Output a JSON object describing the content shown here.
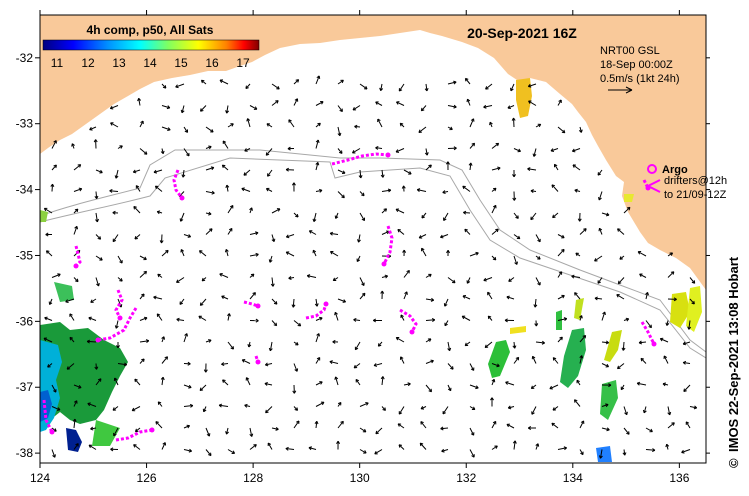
{
  "map": {
    "title": "20-Sep-2021 16Z",
    "colorbar": {
      "title": "4h comp, p50, All Sats",
      "tick_labels": [
        "11",
        "12",
        "13",
        "14",
        "15",
        "16",
        "17"
      ],
      "colors": [
        "#000080",
        "#0000ff",
        "#0080ff",
        "#00ffff",
        "#80ff80",
        "#ffff00",
        "#ff8000",
        "#ff0000",
        "#800000"
      ]
    },
    "current_info": {
      "line1": "NRT00 GSL",
      "line2": "18-Sep 00:00Z",
      "line3": "0.5m/s (1kt 24h)"
    },
    "argo_legend": {
      "label": "Argo",
      "line1": "drifters@12h",
      "line2": "to 21/09-12Z"
    },
    "credit": "IMOS 22-Sep-2021 13:08 Hobart",
    "credit_symbol": "©",
    "x_axis": {
      "ticks": [
        124,
        126,
        128,
        130,
        132,
        134,
        136
      ],
      "range": [
        124,
        136.5
      ]
    },
    "y_axis": {
      "ticks": [
        -32,
        -33,
        -34,
        -35,
        -36,
        -37,
        -38
      ],
      "range": [
        -38.15,
        -31.35
      ]
    },
    "colors": {
      "land": "#f9c99a",
      "sea": "#ffffff",
      "argo": "#ff00ff",
      "bathymetry": "#a8a8a8"
    }
  }
}
